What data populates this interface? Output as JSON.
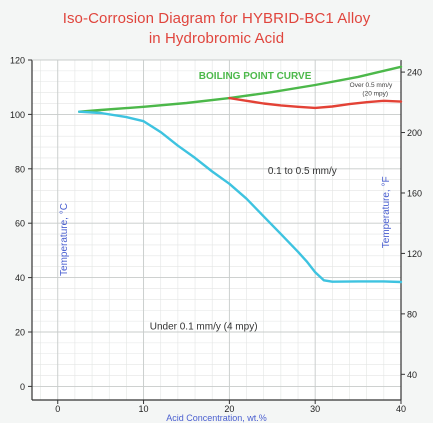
{
  "chart_data": {
    "type": "line",
    "title": "Iso-Corrosion Diagram for HYBRID-BC1 Alloy",
    "subtitle": "in Hydrobromic Acid",
    "xlabel": "Acid Concentration, wt.%",
    "ylabel_left": "Temperature, °C",
    "ylabel_right": "Temperature, °F",
    "xlim": [
      -3,
      40
    ],
    "ylim_left": [
      -5,
      120
    ],
    "ylim_right": [
      23,
      248
    ],
    "x_ticks": [
      0,
      10,
      20,
      30,
      40
    ],
    "y_ticks_left": [
      0,
      20,
      40,
      60,
      80,
      100,
      120
    ],
    "y_ticks_right": [
      40,
      80,
      120,
      160,
      200,
      240
    ],
    "grid": true,
    "series": [
      {
        "name": "BOILING POINT CURVE",
        "color": "#4cb84a",
        "x": [
          2.5,
          5,
          10,
          15,
          20,
          25,
          30,
          35,
          40
        ],
        "y": [
          101,
          101.6,
          102.8,
          104.2,
          106,
          108.2,
          110.8,
          113.8,
          117.5
        ]
      },
      {
        "name": "",
        "color": "#e34236",
        "x": [
          20,
          22,
          24,
          26,
          28,
          30,
          32,
          34,
          36,
          38,
          40
        ],
        "y": [
          106,
          105,
          104,
          103.3,
          102.8,
          102.4,
          102.9,
          103.8,
          104.5,
          105,
          104.7
        ]
      },
      {
        "name": "",
        "color": "#3ec3e0",
        "x": [
          2.5,
          5,
          8,
          10,
          12,
          14,
          16,
          18,
          20,
          22,
          24,
          26,
          28,
          29,
          30,
          31,
          32,
          35,
          38,
          40
        ],
        "y": [
          101,
          100.5,
          99,
          97.5,
          93.5,
          88.5,
          84,
          79,
          74.5,
          69,
          62.5,
          56,
          49.5,
          46,
          42,
          39,
          38.5,
          38.6,
          38.6,
          38.4
        ]
      }
    ],
    "annotations": [
      {
        "text": "BOILING POINT CURVE",
        "color": "#4cb84a",
        "x": 23,
        "y": 113
      },
      {
        "text": "Over 0.5 mm/y",
        "color": "#444444",
        "x": 36.5,
        "y": 110
      },
      {
        "text": "(20 mpy)",
        "color": "#444444",
        "x": 37,
        "y": 107
      },
      {
        "text": "0.1 to 0.5 mm/y",
        "color": "#333333",
        "x": 28.5,
        "y": 78
      },
      {
        "text": "Under 0.1 mm/y (4 mpy)",
        "color": "#333333",
        "x": 17,
        "y": 21
      }
    ]
  }
}
